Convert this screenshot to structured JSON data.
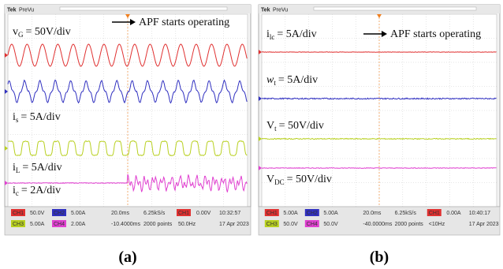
{
  "panels": [
    {
      "header": {
        "brand": "Tek",
        "mode": "PreVu"
      },
      "annotation": "APF starts operating",
      "traces": [
        {
          "symbol": "v",
          "sub": "G",
          "scale": "= 50V/div"
        },
        {
          "symbol": "i",
          "sub": "s",
          "scale": "= 5A/div"
        },
        {
          "symbol": "i",
          "sub": "L",
          "scale": "= 5A/div"
        },
        {
          "symbol": "i",
          "sub": "c",
          "scale": "= 2A/div"
        }
      ],
      "status": {
        "row1": [
          "CH1",
          "50.0V",
          "CH2",
          "5.00A",
          "20.0ms",
          "6.25kS/s",
          "CH1",
          "0.00V",
          "10:32:57"
        ],
        "row2": [
          "CH3",
          "5.00A",
          "CH4",
          "2.00A",
          "-10.4000ms",
          "2000 points",
          "50.0Hz",
          "17 Apr 2023"
        ]
      },
      "caption": "(a)"
    },
    {
      "header": {
        "brand": "Tek",
        "mode": "PreVu"
      },
      "annotation": "APF starts operating",
      "traces": [
        {
          "symbol": "i",
          "sub": "lc",
          "scale": "= 5A/div"
        },
        {
          "symbol": "w",
          "sub": "t",
          "scale": "= 5A/div"
        },
        {
          "symbol": "V",
          "sub": "t",
          "scale": "= 50V/div"
        },
        {
          "symbol": "V",
          "sub": "DC",
          "scale": "= 50V/div"
        }
      ],
      "status": {
        "row1": [
          "CH1",
          "5.00A",
          "CH2",
          "5.00A",
          "20.0ms",
          "6.25kS/s",
          "CH1",
          "0.00A",
          "10:40:17"
        ],
        "row2": [
          "CH3",
          "50.0V",
          "CH4",
          "50.0V",
          "-40.0000ms",
          "2000 points",
          "<10Hz",
          "17 Apr 2023"
        ]
      },
      "caption": "(b)"
    }
  ]
}
